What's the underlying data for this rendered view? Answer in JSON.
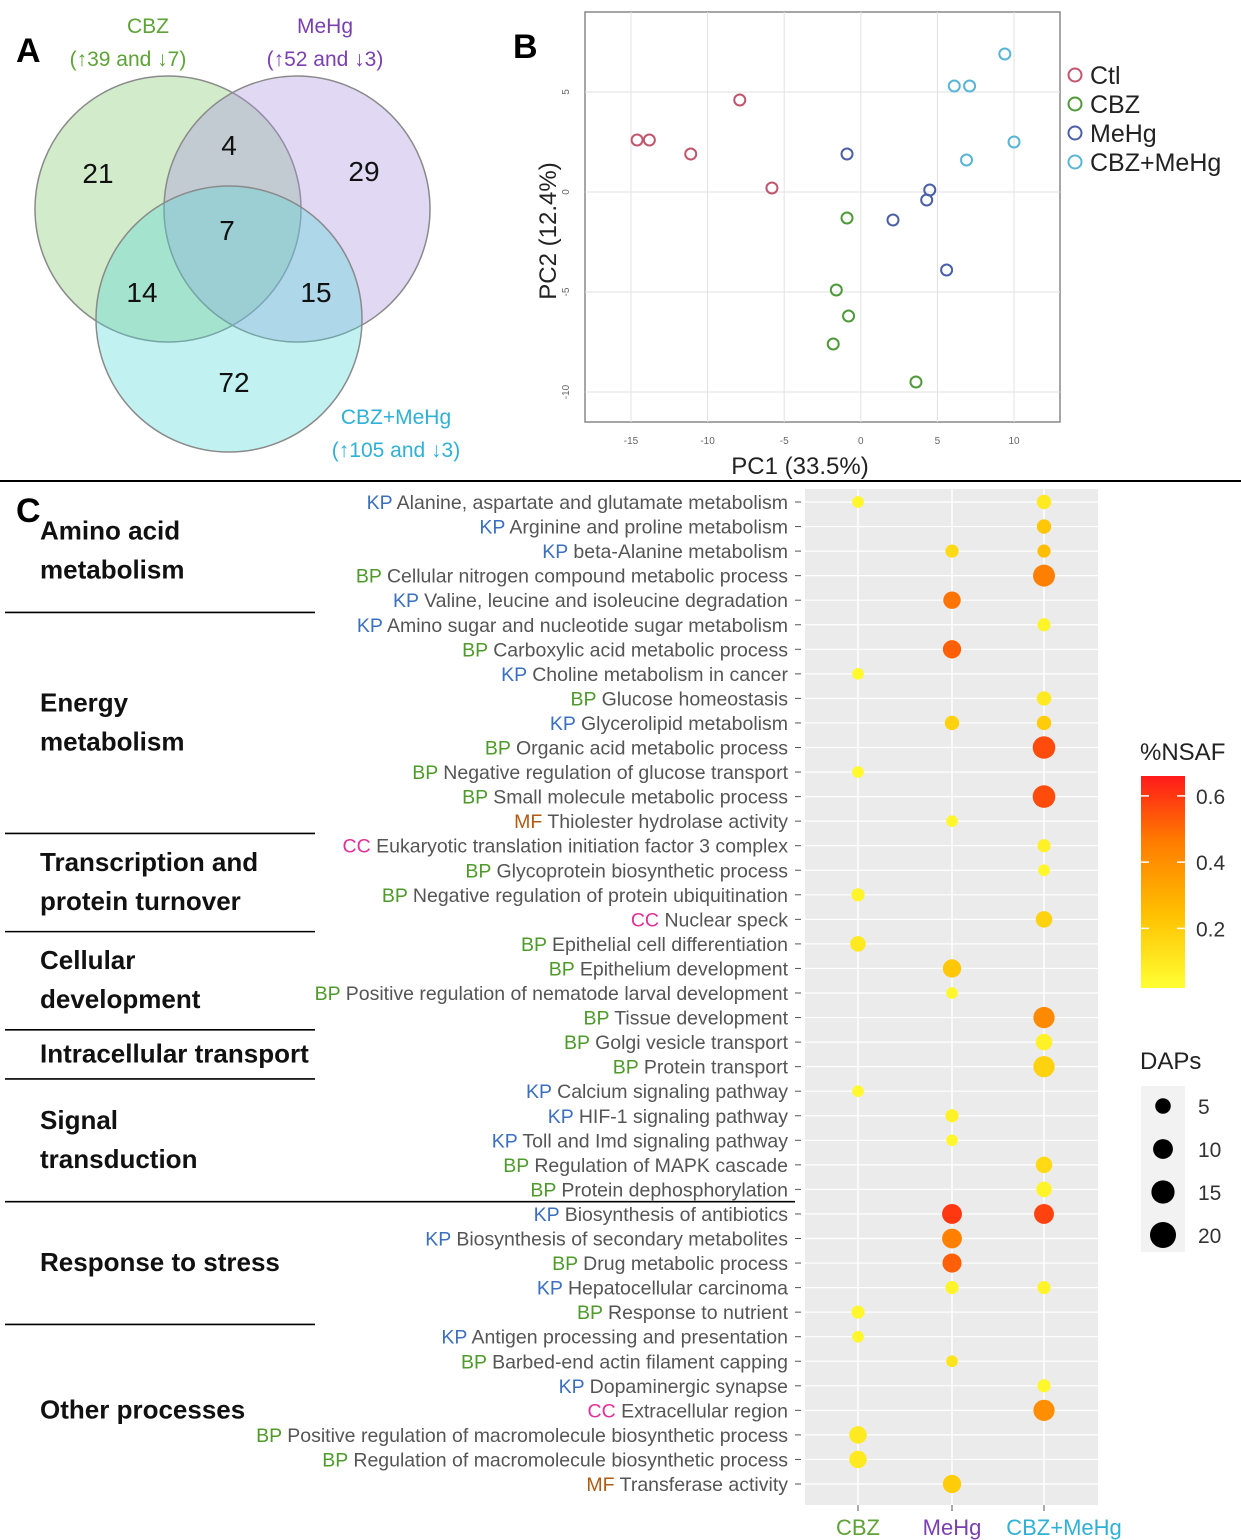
{
  "colors": {
    "cbz": "#5ea336",
    "mehg": "#7a3fb0",
    "combo": "#2fb0d6",
    "ctl": "#c0566d",
    "kp": "#3b6fbf",
    "bp": "#4e9a2a",
    "mf": "#b05a12",
    "cc": "#e0309a"
  },
  "panels": {
    "a": "A",
    "b": "B",
    "c": "C"
  },
  "chart_data": [
    {
      "type": "venn",
      "sets": [
        {
          "name": "CBZ",
          "summary": "(↑39 and ↓7)",
          "color": "#7ec86b"
        },
        {
          "name": "MeHg",
          "summary": "(↑52 and ↓3)",
          "color": "#a98fe0"
        },
        {
          "name": "CBZ+MeHg",
          "summary": "(↑105 and ↓3)",
          "color": "#4fd6d6"
        }
      ],
      "regions": [
        {
          "sets": [
            "CBZ"
          ],
          "value": 21
        },
        {
          "sets": [
            "MeHg"
          ],
          "value": 29
        },
        {
          "sets": [
            "CBZ+MeHg"
          ],
          "value": 72
        },
        {
          "sets": [
            "CBZ",
            "MeHg"
          ],
          "value": 4
        },
        {
          "sets": [
            "CBZ",
            "CBZ+MeHg"
          ],
          "value": 14
        },
        {
          "sets": [
            "MeHg",
            "CBZ+MeHg"
          ],
          "value": 15
        },
        {
          "sets": [
            "CBZ",
            "MeHg",
            "CBZ+MeHg"
          ],
          "value": 7
        }
      ]
    },
    {
      "type": "scatter",
      "xlabel": "PC1 (33.5%)",
      "ylabel": "PC2 (12.4%)",
      "xlim": [
        -18,
        13
      ],
      "ylim": [
        -11.5,
        9
      ],
      "xticks": [
        -15,
        -10,
        -5,
        0,
        5,
        10
      ],
      "yticks": [
        5,
        0,
        -5,
        -10
      ],
      "grid": true,
      "legend_position": "right",
      "series": [
        {
          "name": "Ctl",
          "color": "#c0566d",
          "x": [
            -14.6,
            -13.8,
            -11.1,
            -7.9,
            -5.8
          ],
          "y": [
            2.6,
            2.6,
            1.9,
            4.6,
            0.2
          ]
        },
        {
          "name": "CBZ",
          "color": "#4e9a3a",
          "x": [
            -0.9,
            -1.6,
            -0.8,
            -1.8,
            3.6
          ],
          "y": [
            -1.3,
            -4.9,
            -6.2,
            -7.6,
            -9.5
          ]
        },
        {
          "name": "MeHg",
          "color": "#4a5fa8",
          "x": [
            -0.9,
            2.1,
            4.5,
            4.3,
            5.6
          ],
          "y": [
            1.9,
            -1.4,
            0.1,
            -0.4,
            -3.9
          ]
        },
        {
          "name": "CBZ+MeHg",
          "color": "#59b5d6",
          "x": [
            6.1,
            7.1,
            9.4,
            10.0,
            6.9
          ],
          "y": [
            5.3,
            5.3,
            6.9,
            2.5,
            1.6
          ]
        }
      ]
    },
    {
      "type": "bubble",
      "columns": [
        "CBZ",
        "MeHg",
        "CBZ+MeHg"
      ],
      "color_legend": {
        "title": "%NSAF",
        "ticks": [
          0.6,
          0.4,
          0.2
        ],
        "range": [
          0.02,
          0.66
        ]
      },
      "size_legend": {
        "title": "DAPs",
        "values": [
          5,
          10,
          15,
          20
        ]
      },
      "groups": [
        {
          "title": "Amino acid metabolism",
          "lines": [
            "Amino acid",
            "metabolism"
          ],
          "terms": [
            {
              "tag": "KP",
              "label": "Alanine, aspartate and glutamate metabolism",
              "points": [
                [
                  0,
                  0.05,
                  2
                ],
                [
                  2,
                  0.1,
                  4
                ]
              ]
            },
            {
              "tag": "KP",
              "label": "Arginine and proline metabolism",
              "points": [
                [
                  2,
                  0.22,
                  4
                ]
              ]
            },
            {
              "tag": "KP",
              "label": "beta-Alanine metabolism",
              "points": [
                [
                  1,
                  0.15,
                  3
                ],
                [
                  2,
                  0.25,
                  3
                ]
              ]
            },
            {
              "tag": "BP",
              "label": "Cellular nitrogen compound metabolic process",
              "points": [
                [
                  2,
                  0.45,
                  13
                ]
              ]
            },
            {
              "tag": "KP",
              "label": "Valine, leucine and isoleucine degradation",
              "points": [
                [
                  1,
                  0.48,
                  7
                ]
              ]
            }
          ]
        },
        {
          "title": "Energy metabolism",
          "lines": [
            "Energy",
            "metabolism"
          ],
          "terms": [
            {
              "tag": "KP",
              "label": "Amino sugar and nucleotide sugar metabolism",
              "points": [
                [
                  2,
                  0.06,
                  3
                ]
              ]
            },
            {
              "tag": "BP",
              "label": "Carboxylic acid metabolic process",
              "points": [
                [
                  1,
                  0.52,
                  8
                ]
              ]
            },
            {
              "tag": "KP",
              "label": "Choline metabolism in cancer",
              "points": [
                [
                  0,
                  0.04,
                  2
                ]
              ]
            },
            {
              "tag": "BP",
              "label": "Glucose homeostasis",
              "points": [
                [
                  2,
                  0.1,
                  4
                ]
              ]
            },
            {
              "tag": "KP",
              "label": "Glycerolipid metabolism",
              "points": [
                [
                  1,
                  0.18,
                  4
                ],
                [
                  2,
                  0.2,
                  4
                ]
              ]
            },
            {
              "tag": "BP",
              "label": "Organic acid metabolic process",
              "points": [
                [
                  2,
                  0.56,
                  14
                ]
              ]
            },
            {
              "tag": "BP",
              "label": "Negative regulation of glucose transport",
              "points": [
                [
                  0,
                  0.04,
                  2
                ]
              ]
            },
            {
              "tag": "BP",
              "label": "Small molecule metabolic process",
              "points": [
                [
                  2,
                  0.56,
                  14
                ]
              ]
            },
            {
              "tag": "MF",
              "label": "Thiolester hydrolase activity",
              "points": [
                [
                  1,
                  0.05,
                  2
                ]
              ]
            }
          ]
        },
        {
          "title": "Transcription and protein turnover",
          "lines": [
            "Transcription and",
            "protein turnover"
          ],
          "terms": [
            {
              "tag": "CC",
              "label": "Eukaryotic translation initiation factor 3 complex",
              "points": [
                [
                  2,
                  0.07,
                  3
                ]
              ]
            },
            {
              "tag": "BP",
              "label": "Glycoprotein biosynthetic process",
              "points": [
                [
                  2,
                  0.05,
                  2
                ]
              ]
            },
            {
              "tag": "BP",
              "label": "Negative regulation of protein ubiquitination",
              "points": [
                [
                  0,
                  0.06,
                  3
                ]
              ]
            },
            {
              "tag": "CC",
              "label": "Nuclear speck",
              "points": [
                [
                  2,
                  0.18,
                  6
                ]
              ]
            }
          ]
        },
        {
          "title": "Cellular development",
          "lines": [
            "Cellular",
            "development"
          ],
          "terms": [
            {
              "tag": "BP",
              "label": "Epithelial cell differentiation",
              "points": [
                [
                  0,
                  0.1,
                  5
                ]
              ]
            },
            {
              "tag": "BP",
              "label": "Epithelium development",
              "points": [
                [
                  1,
                  0.22,
                  8
                ]
              ]
            },
            {
              "tag": "BP",
              "label": "Positive regulation of nematode larval development",
              "points": [
                [
                  1,
                  0.05,
                  2
                ]
              ]
            },
            {
              "tag": "BP",
              "label": "Tissue development",
              "points": [
                [
                  2,
                  0.42,
                  12
                ]
              ]
            }
          ]
        },
        {
          "title": "Intracellular transport",
          "lines": [
            "Intracellular transport"
          ],
          "terms": [
            {
              "tag": "BP",
              "label": "Golgi vesicle transport",
              "points": [
                [
                  2,
                  0.07,
                  6
                ]
              ]
            },
            {
              "tag": "BP",
              "label": "Protein transport",
              "points": [
                [
                  2,
                  0.18,
                  12
                ]
              ]
            }
          ]
        },
        {
          "title": "Signal transduction",
          "lines": [
            "Signal",
            "transduction"
          ],
          "terms": [
            {
              "tag": "KP",
              "label": "Calcium signaling pathway",
              "points": [
                [
                  0,
                  0.04,
                  2
                ]
              ]
            },
            {
              "tag": "KP",
              "label": "HIF-1 signaling pathway",
              "points": [
                [
                  1,
                  0.07,
                  3
                ]
              ]
            },
            {
              "tag": "KP",
              "label": "Toll and Imd signaling pathway",
              "points": [
                [
                  1,
                  0.05,
                  2
                ]
              ]
            },
            {
              "tag": "BP",
              "label": "Regulation of MAPK cascade",
              "points": [
                [
                  2,
                  0.15,
                  6
                ]
              ]
            },
            {
              "tag": "BP",
              "label": "Protein dephosphorylation",
              "points": [
                [
                  2,
                  0.06,
                  5
                ]
              ]
            }
          ]
        },
        {
          "title": "Response to stress",
          "lines": [
            "Response to stress"
          ],
          "terms": [
            {
              "tag": "KP",
              "label": "Biosynthesis of antibiotics",
              "points": [
                [
                  1,
                  0.6,
                  10
                ],
                [
                  2,
                  0.58,
                  10
                ]
              ]
            },
            {
              "tag": "KP",
              "label": "Biosynthesis of secondary metabolites",
              "points": [
                [
                  1,
                  0.45,
                  10
                ]
              ]
            },
            {
              "tag": "BP",
              "label": "Drug metabolic process",
              "points": [
                [
                  1,
                  0.52,
                  9
                ]
              ]
            },
            {
              "tag": "KP",
              "label": "Hepatocellular carcinoma",
              "points": [
                [
                  1,
                  0.06,
                  3
                ],
                [
                  2,
                  0.06,
                  3
                ]
              ]
            },
            {
              "tag": "BP",
              "label": "Response to nutrient",
              "points": [
                [
                  0,
                  0.05,
                  3
                ]
              ]
            }
          ]
        },
        {
          "title": "Other processes",
          "lines": [
            "Other processes"
          ],
          "terms": [
            {
              "tag": "KP",
              "label": "Antigen processing and presentation",
              "points": [
                [
                  0,
                  0.05,
                  2
                ]
              ]
            },
            {
              "tag": "BP",
              "label": "Barbed-end actin filament capping",
              "points": [
                [
                  1,
                  0.12,
                  2
                ]
              ]
            },
            {
              "tag": "KP",
              "label": "Dopaminergic synapse",
              "points": [
                [
                  2,
                  0.05,
                  3
                ]
              ]
            },
            {
              "tag": "CC",
              "label": "Extracellular region",
              "points": [
                [
                  2,
                  0.4,
                  12
                ]
              ]
            },
            {
              "tag": "BP",
              "label": "Positive regulation of macromolecule biosynthetic process",
              "points": [
                [
                  0,
                  0.1,
                  7
                ]
              ]
            },
            {
              "tag": "BP",
              "label": "Regulation of macromolecule biosynthetic process",
              "points": [
                [
                  0,
                  0.1,
                  7
                ]
              ]
            },
            {
              "tag": "MF",
              "label": "Transferase activity",
              "points": [
                [
                  1,
                  0.2,
                  8
                ]
              ]
            }
          ]
        }
      ]
    }
  ]
}
